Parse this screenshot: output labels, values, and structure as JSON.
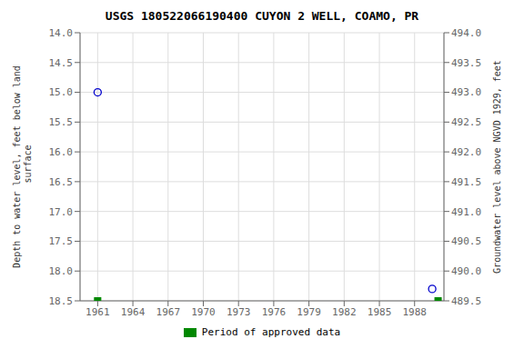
{
  "chart_data": {
    "type": "scatter",
    "title": "USGS 180522066190400 CUYON 2 WELL, COAMO, PR",
    "y_label": "Depth to water level, feet below land\n surface",
    "y2_label": "Groundwater level above NGVD 1929, feet",
    "xlim": [
      1959.5,
      1990.5
    ],
    "xticks": [
      1961,
      1964,
      1967,
      1970,
      1973,
      1976,
      1979,
      1982,
      1985,
      1988
    ],
    "ylim": [
      18.5,
      14.0
    ],
    "yticks": [
      {
        "value": 14,
        "label": "14.0"
      },
      14.5,
      {
        "value": 15,
        "label": "15.0"
      },
      15.5,
      {
        "value": 16,
        "label": "16.0"
      },
      16.5,
      {
        "value": 17,
        "label": "17.0"
      },
      17.5,
      {
        "value": 18,
        "label": "18.0"
      },
      18.5
    ],
    "y2lim": [
      489.5,
      494.0
    ],
    "y2ticks": [
      {
        "value": 494,
        "label": "494.0"
      },
      493.5,
      {
        "value": 493,
        "label": "493.0"
      },
      492.5,
      {
        "value": 492,
        "label": "492.0"
      },
      491.5,
      {
        "value": 491,
        "label": "491.0"
      },
      490.5,
      {
        "value": 490,
        "label": "490.0"
      },
      489.5
    ],
    "grid": true,
    "legend": "bottom",
    "series": [
      {
        "color": "#0000cc",
        "marker": "circle",
        "x": [
          1961.0,
          1989.5
        ],
        "values": [
          15.0,
          18.3
        ]
      },
      {
        "name": "Period of approved data",
        "color": "#008800",
        "marker": "square",
        "x": [
          1961.0,
          1990.0
        ],
        "values": [
          18.5,
          18.5
        ]
      }
    ]
  }
}
